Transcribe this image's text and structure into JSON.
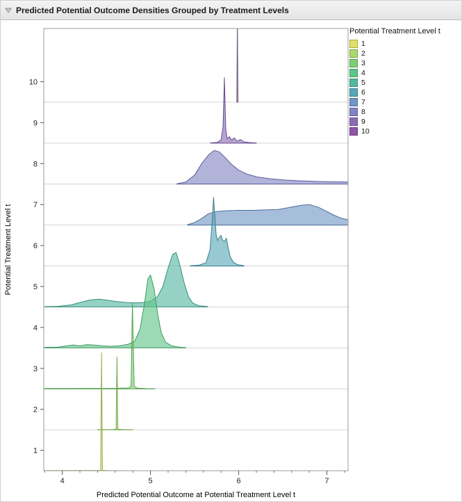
{
  "header": {
    "title": "Predicted Potential Outcome Densities Grouped by Treatment Levels"
  },
  "legend": {
    "title": "Potential Treatment Level t",
    "items": [
      {
        "label": "1",
        "color": "#dee26a",
        "border": "#a8ab3f"
      },
      {
        "label": "2",
        "color": "#abd86f",
        "border": "#7aa845"
      },
      {
        "label": "3",
        "color": "#7fce74",
        "border": "#52a04c"
      },
      {
        "label": "4",
        "color": "#5fc489",
        "border": "#3f9a64"
      },
      {
        "label": "5",
        "color": "#54b7a2",
        "border": "#368e7a"
      },
      {
        "label": "6",
        "color": "#58a7b6",
        "border": "#3a7e8d"
      },
      {
        "label": "7",
        "color": "#6f96c4",
        "border": "#4b6e9c"
      },
      {
        "label": "8",
        "color": "#8184c2",
        "border": "#5b5e9d"
      },
      {
        "label": "9",
        "color": "#8a6db3",
        "border": "#64488e"
      },
      {
        "label": "10",
        "color": "#8e57a7",
        "border": "#683a80"
      }
    ]
  },
  "chart_data": {
    "type": "area",
    "variant": "ridgeline-density",
    "title": "Predicted Potential Outcome Densities Grouped by Treatment Levels",
    "xlabel": "Predicted Potential Outcome at Potential Treatment Level t",
    "ylabel": "Potential Treatment Level t",
    "x_ticks": [
      4,
      5,
      6,
      7
    ],
    "x_minor_step": 0.2,
    "xlim": [
      3.79,
      7.24
    ],
    "y_ticks": [
      1,
      2,
      3,
      4,
      5,
      6,
      7,
      8,
      9,
      10
    ],
    "ylim": [
      0.5,
      11.3
    ],
    "grid": "horizontal-band-lines",
    "legend_position": "right-top",
    "series": [
      {
        "level": 1,
        "baseline": 0.5,
        "fill": "#dee26a",
        "stroke": "#9fa24a",
        "points": [
          [
            3.8,
            0.004
          ],
          [
            4.4,
            0.006
          ],
          [
            4.435,
            0.01
          ],
          [
            4.445,
            2.88
          ],
          [
            4.455,
            0.01
          ],
          [
            4.52,
            0.004
          ],
          [
            4.7,
            0.002
          ]
        ]
      },
      {
        "level": 2,
        "baseline": 1.5,
        "fill": "#abd86f",
        "stroke": "#74a647",
        "points": [
          [
            4.4,
            0.003
          ],
          [
            4.58,
            0.006
          ],
          [
            4.61,
            0.015
          ],
          [
            4.62,
            1.78
          ],
          [
            4.63,
            0.015
          ],
          [
            4.68,
            0.005
          ],
          [
            4.8,
            0.002
          ]
        ]
      },
      {
        "level": 3,
        "baseline": 2.5,
        "fill": "#7fce74",
        "stroke": "#4fa14d",
        "points": [
          [
            3.8,
            0.008
          ],
          [
            4.3,
            0.01
          ],
          [
            4.6,
            0.012
          ],
          [
            4.75,
            0.02
          ],
          [
            4.78,
            0.06
          ],
          [
            4.795,
            2.08
          ],
          [
            4.815,
            0.06
          ],
          [
            4.85,
            0.015
          ],
          [
            4.95,
            0.006
          ],
          [
            5.05,
            0.003
          ]
        ]
      },
      {
        "level": 4,
        "baseline": 3.5,
        "fill": "#5fc489",
        "stroke": "#3f9a64",
        "points": [
          [
            3.8,
            0.015
          ],
          [
            3.95,
            0.02
          ],
          [
            4.05,
            0.05
          ],
          [
            4.12,
            0.07
          ],
          [
            4.2,
            0.05
          ],
          [
            4.28,
            0.08
          ],
          [
            4.36,
            0.07
          ],
          [
            4.45,
            0.05
          ],
          [
            4.55,
            0.04
          ],
          [
            4.65,
            0.05
          ],
          [
            4.75,
            0.09
          ],
          [
            4.82,
            0.16
          ],
          [
            4.88,
            0.45
          ],
          [
            4.93,
            1.05
          ],
          [
            4.97,
            1.68
          ],
          [
            5.0,
            1.78
          ],
          [
            5.04,
            1.45
          ],
          [
            5.08,
            0.85
          ],
          [
            5.12,
            0.38
          ],
          [
            5.17,
            0.14
          ],
          [
            5.24,
            0.05
          ],
          [
            5.32,
            0.02
          ],
          [
            5.4,
            0.008
          ]
        ]
      },
      {
        "level": 5,
        "baseline": 4.5,
        "fill": "#54b7a2",
        "stroke": "#368e7a",
        "points": [
          [
            3.8,
            0.008
          ],
          [
            3.95,
            0.015
          ],
          [
            4.1,
            0.05
          ],
          [
            4.22,
            0.12
          ],
          [
            4.32,
            0.17
          ],
          [
            4.42,
            0.19
          ],
          [
            4.52,
            0.16
          ],
          [
            4.62,
            0.13
          ],
          [
            4.72,
            0.11
          ],
          [
            4.82,
            0.1
          ],
          [
            4.92,
            0.11
          ],
          [
            5.0,
            0.14
          ],
          [
            5.08,
            0.25
          ],
          [
            5.14,
            0.5
          ],
          [
            5.2,
            0.95
          ],
          [
            5.25,
            1.28
          ],
          [
            5.29,
            1.33
          ],
          [
            5.33,
            1.05
          ],
          [
            5.38,
            0.6
          ],
          [
            5.43,
            0.25
          ],
          [
            5.48,
            0.09
          ],
          [
            5.55,
            0.03
          ],
          [
            5.65,
            0.01
          ]
        ]
      },
      {
        "level": 6,
        "baseline": 5.5,
        "fill": "#58a7b6",
        "stroke": "#3a7e8d",
        "points": [
          [
            5.45,
            0.005
          ],
          [
            5.55,
            0.02
          ],
          [
            5.63,
            0.08
          ],
          [
            5.675,
            0.4
          ],
          [
            5.7,
            1.1
          ],
          [
            5.715,
            1.68
          ],
          [
            5.73,
            1.2
          ],
          [
            5.745,
            0.75
          ],
          [
            5.76,
            0.62
          ],
          [
            5.78,
            0.7
          ],
          [
            5.8,
            0.75
          ],
          [
            5.82,
            0.62
          ],
          [
            5.84,
            0.6
          ],
          [
            5.86,
            0.68
          ],
          [
            5.88,
            0.45
          ],
          [
            5.905,
            0.22
          ],
          [
            5.94,
            0.09
          ],
          [
            5.99,
            0.03
          ],
          [
            6.06,
            0.01
          ]
        ]
      },
      {
        "level": 7,
        "baseline": 6.5,
        "fill": "#6f96c4",
        "stroke": "#4b6e9c",
        "points": [
          [
            5.42,
            0.01
          ],
          [
            5.5,
            0.06
          ],
          [
            5.58,
            0.16
          ],
          [
            5.66,
            0.28
          ],
          [
            5.75,
            0.33
          ],
          [
            5.85,
            0.35
          ],
          [
            6.0,
            0.36
          ],
          [
            6.15,
            0.36
          ],
          [
            6.3,
            0.37
          ],
          [
            6.45,
            0.38
          ],
          [
            6.58,
            0.43
          ],
          [
            6.7,
            0.48
          ],
          [
            6.8,
            0.5
          ],
          [
            6.9,
            0.44
          ],
          [
            7.0,
            0.33
          ],
          [
            7.08,
            0.24
          ],
          [
            7.16,
            0.17
          ],
          [
            7.24,
            0.13
          ]
        ]
      },
      {
        "level": 8,
        "baseline": 7.5,
        "fill": "#8184c2",
        "stroke": "#5b5e9d",
        "points": [
          [
            5.3,
            0.01
          ],
          [
            5.4,
            0.05
          ],
          [
            5.5,
            0.22
          ],
          [
            5.58,
            0.5
          ],
          [
            5.66,
            0.72
          ],
          [
            5.72,
            0.82
          ],
          [
            5.78,
            0.79
          ],
          [
            5.84,
            0.66
          ],
          [
            5.92,
            0.48
          ],
          [
            6.0,
            0.34
          ],
          [
            6.1,
            0.24
          ],
          [
            6.22,
            0.17
          ],
          [
            6.36,
            0.13
          ],
          [
            6.52,
            0.1
          ],
          [
            6.7,
            0.08
          ],
          [
            6.9,
            0.065
          ],
          [
            7.08,
            0.055
          ],
          [
            7.24,
            0.05
          ]
        ]
      },
      {
        "level": 9,
        "baseline": 8.5,
        "fill": "#8a6db3",
        "stroke": "#64488e",
        "points": [
          [
            5.68,
            0.005
          ],
          [
            5.76,
            0.02
          ],
          [
            5.8,
            0.08
          ],
          [
            5.823,
            0.4
          ],
          [
            5.838,
            1.6
          ],
          [
            5.853,
            0.35
          ],
          [
            5.87,
            0.1
          ],
          [
            5.895,
            0.16
          ],
          [
            5.92,
            0.07
          ],
          [
            5.95,
            0.13
          ],
          [
            5.98,
            0.05
          ],
          [
            6.02,
            0.09
          ],
          [
            6.06,
            0.03
          ],
          [
            6.12,
            0.015
          ],
          [
            6.2,
            0.005
          ]
        ]
      },
      {
        "level": 10,
        "baseline": 9.5,
        "fill": "#8e57a7",
        "stroke": "#6f5f7d",
        "points": [
          [
            5.978,
            0.0
          ],
          [
            5.985,
            2.1
          ],
          [
            5.992,
            0.0
          ]
        ]
      }
    ]
  }
}
